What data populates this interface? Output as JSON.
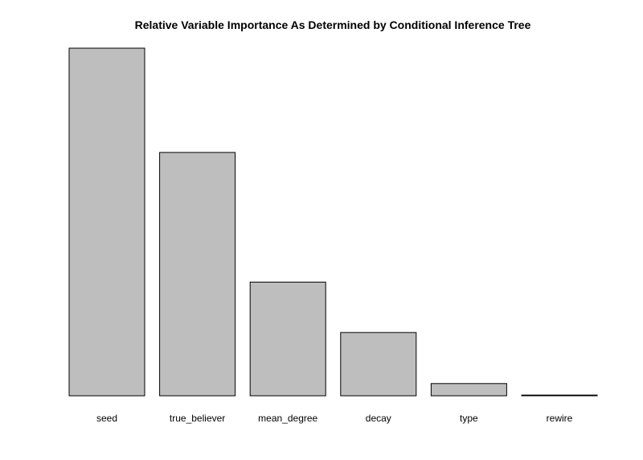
{
  "chart_data": {
    "type": "bar",
    "title": "Relative Variable Importance As Determined by Conditional Inference Tree",
    "xlabel": "",
    "ylabel": "",
    "categories": [
      "seed",
      "true_believer",
      "mean_degree",
      "decay",
      "type",
      "rewire"
    ],
    "values": [
      1.0,
      0.7,
      0.327,
      0.182,
      0.035,
      0.002
    ],
    "ylim": [
      0,
      1.0
    ],
    "axes_shown": false,
    "grid": false,
    "bar_fill": "#bebebe",
    "bar_stroke": "#000000"
  }
}
